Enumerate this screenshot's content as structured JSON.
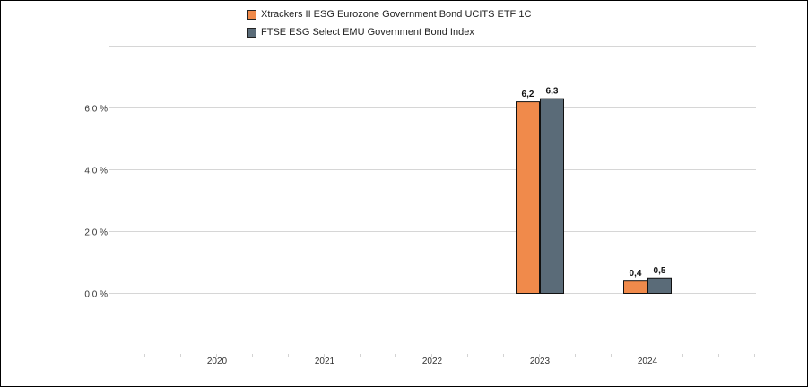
{
  "chart_data": {
    "type": "bar",
    "categories": [
      "2020",
      "2021",
      "2022",
      "2023",
      "2024"
    ],
    "series": [
      {
        "name": "Xtrackers II ESG Eurozone Government Bond UCITS ETF 1C",
        "color": "#f08a4b",
        "values": [
          null,
          null,
          null,
          6.2,
          0.4
        ],
        "labels": [
          "",
          "",
          "",
          "6,2",
          "0,4"
        ]
      },
      {
        "name": "FTSE ESG Select EMU Government Bond Index",
        "color": "#5a6b78",
        "values": [
          null,
          null,
          null,
          6.3,
          0.5
        ],
        "labels": [
          "",
          "",
          "",
          "6,3",
          "0,5"
        ]
      }
    ],
    "y_ticks": [
      {
        "value": 0,
        "label": "0,0 %"
      },
      {
        "value": 2,
        "label": "2,0 %"
      },
      {
        "value": 4,
        "label": "4,0 %"
      },
      {
        "value": 6,
        "label": "6,0 %"
      }
    ],
    "ylim": [
      -2,
      8
    ],
    "grid": true,
    "legend_position": "top-center"
  }
}
